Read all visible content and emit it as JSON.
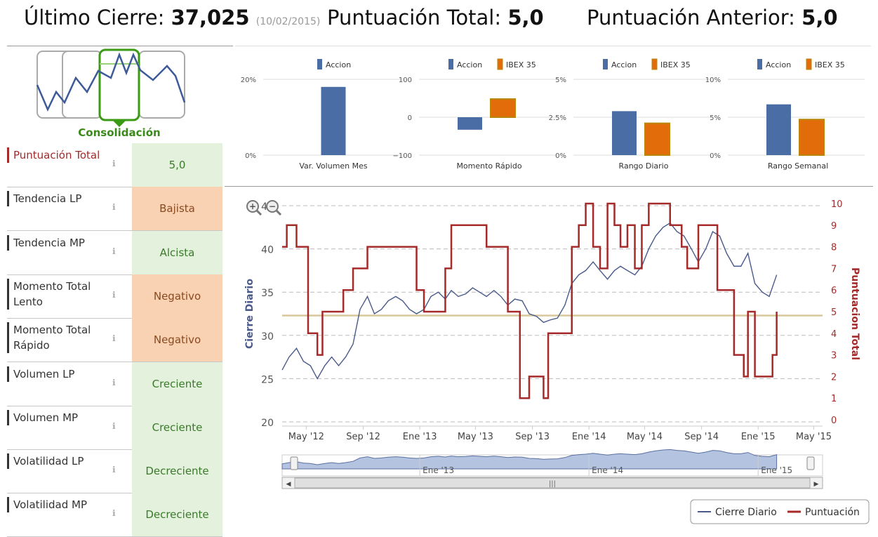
{
  "header": {
    "ultimo_label": "Último Cierre:",
    "ultimo_value": "37,025",
    "ultimo_date": "(10/02/2015)",
    "total_label": "Puntuación Total:",
    "total_value": "5,0",
    "anterior_label": "Puntuación Anterior:",
    "anterior_value": "5,0"
  },
  "pattern": {
    "label": "Consolidación"
  },
  "colors": {
    "accion": "#4a6da6",
    "ibex": "#e36c0a",
    "ibex_border": "#b8860b",
    "green_bg": "#e3f1dd",
    "orange_bg": "#f8d2b3",
    "line": "#4a5a8a",
    "score": "#a52a2a"
  },
  "scores": [
    {
      "label": "Puntuación Total",
      "value": "5,0",
      "status": "green",
      "red": true
    },
    {
      "label": "Tendencia LP",
      "value": "Bajista",
      "status": "orange"
    },
    {
      "label": "Tendencia MP",
      "value": "Alcista",
      "status": "green"
    },
    {
      "label": "Momento Total Lento",
      "value": "Negativo",
      "status": "orange"
    },
    {
      "label": "Momento Total Rápido",
      "value": "Negativo",
      "status": "orange"
    },
    {
      "label": "Volumen LP",
      "value": "Creciente",
      "status": "green"
    },
    {
      "label": "Volumen MP",
      "value": "Creciente",
      "status": "green"
    },
    {
      "label": "Volatilidad LP",
      "value": "Decreciente",
      "status": "green"
    },
    {
      "label": "Volatilidad MP",
      "value": "Decreciente",
      "status": "green"
    }
  ],
  "chart_data": [
    {
      "type": "bar",
      "xlabel": "Var. Volumen Mes",
      "legend": [
        "Accion"
      ],
      "yticks": [
        "0%",
        "20%"
      ],
      "ylim": [
        0,
        20
      ],
      "series": [
        {
          "name": "Accion",
          "values": [
            18
          ]
        }
      ]
    },
    {
      "type": "bar",
      "xlabel": "Momento Rápido",
      "legend": [
        "Accion",
        "IBEX 35"
      ],
      "yticks": [
        "−100",
        "0",
        "100"
      ],
      "ylim": [
        -100,
        100
      ],
      "series": [
        {
          "name": "Accion",
          "values": [
            -33
          ]
        },
        {
          "name": "IBEX 35",
          "values": [
            48
          ]
        }
      ]
    },
    {
      "type": "bar",
      "xlabel": "Rango Diario",
      "legend": [
        "Accion",
        "IBEX 35"
      ],
      "yticks": [
        "0%",
        "2.5%",
        "5%"
      ],
      "ylim": [
        0,
        5
      ],
      "series": [
        {
          "name": "Accion",
          "values": [
            2.9
          ]
        },
        {
          "name": "IBEX 35",
          "values": [
            2.1
          ]
        }
      ]
    },
    {
      "type": "bar",
      "xlabel": "Rango Semanal",
      "legend": [
        "Accion",
        "IBEX 35"
      ],
      "yticks": [
        "0%",
        "5%",
        "10%"
      ],
      "ylim": [
        0,
        10
      ],
      "series": [
        {
          "name": "Accion",
          "values": [
            6.7
          ]
        },
        {
          "name": "IBEX 35",
          "values": [
            4.7
          ]
        }
      ]
    },
    {
      "type": "line",
      "ylabel": "Cierre Diario",
      "y2label": "Puntuacion Total",
      "yticks": [
        "20",
        "25",
        "30",
        "35",
        "40",
        "45"
      ],
      "ylim": [
        20,
        45
      ],
      "y2ticks": [
        "0",
        "1",
        "2",
        "3",
        "4",
        "5",
        "6",
        "7",
        "8",
        "9",
        "10"
      ],
      "y2lim": [
        0,
        10
      ],
      "xlim": [
        "2012-03-10",
        "2015-05-20"
      ],
      "xticks": [
        {
          "date": "2012-05-01",
          "label": "May '12"
        },
        {
          "date": "2012-09-01",
          "label": "Sep '12"
        },
        {
          "date": "2013-01-01",
          "label": "Ene '13"
        },
        {
          "date": "2013-05-01",
          "label": "May '13"
        },
        {
          "date": "2013-09-01",
          "label": "Sep '13"
        },
        {
          "date": "2014-01-01",
          "label": "Ene '14"
        },
        {
          "date": "2014-05-01",
          "label": "May '14"
        },
        {
          "date": "2014-09-01",
          "label": "Sep '14"
        },
        {
          "date": "2015-01-01",
          "label": "Ene '15"
        },
        {
          "date": "2015-05-01",
          "label": "May '15"
        }
      ],
      "reference_line": 32.3,
      "legend": [
        "Cierre Diario",
        "Puntuación"
      ],
      "navigator_labels": [
        {
          "date": "2013-01-01",
          "label": "Ene '13"
        },
        {
          "date": "2014-01-01",
          "label": "Ene '14"
        },
        {
          "date": "2015-01-01",
          "label": "Ene '15"
        }
      ],
      "series": [
        {
          "name": "Cierre Diario",
          "x": [
            "2012-03-10",
            "2012-03-25",
            "2012-04-10",
            "2012-04-25",
            "2012-05-10",
            "2012-05-25",
            "2012-06-10",
            "2012-06-25",
            "2012-07-10",
            "2012-07-25",
            "2012-08-10",
            "2012-08-25",
            "2012-09-10",
            "2012-09-25",
            "2012-10-10",
            "2012-10-25",
            "2012-11-10",
            "2012-11-25",
            "2012-12-10",
            "2012-12-25",
            "2013-01-10",
            "2013-01-25",
            "2013-02-10",
            "2013-02-25",
            "2013-03-10",
            "2013-03-25",
            "2013-04-10",
            "2013-04-25",
            "2013-05-10",
            "2013-05-25",
            "2013-06-10",
            "2013-06-25",
            "2013-07-10",
            "2013-07-25",
            "2013-08-10",
            "2013-08-25",
            "2013-09-10",
            "2013-09-25",
            "2013-10-10",
            "2013-10-25",
            "2013-11-10",
            "2013-11-25",
            "2013-12-10",
            "2013-12-25",
            "2014-01-10",
            "2014-01-25",
            "2014-02-10",
            "2014-02-25",
            "2014-03-10",
            "2014-03-25",
            "2014-04-10",
            "2014-04-25",
            "2014-05-10",
            "2014-05-25",
            "2014-06-10",
            "2014-06-25",
            "2014-07-10",
            "2014-07-25",
            "2014-08-10",
            "2014-08-25",
            "2014-09-10",
            "2014-09-25",
            "2014-10-10",
            "2014-10-25",
            "2014-11-10",
            "2014-11-25",
            "2014-12-10",
            "2014-12-25",
            "2015-01-10",
            "2015-01-25",
            "2015-02-10"
          ],
          "values": [
            26,
            27.5,
            28.5,
            27,
            26.5,
            25,
            26.5,
            27.5,
            26.5,
            27.5,
            29,
            33,
            34.5,
            32.5,
            33,
            34,
            34.5,
            34,
            33,
            32.5,
            33,
            34.5,
            35,
            34.2,
            35.2,
            34.5,
            34.8,
            35.5,
            35,
            34.5,
            35.2,
            34.5,
            33.5,
            34.2,
            34,
            32.5,
            32.2,
            31.5,
            31.8,
            32,
            33.5,
            36,
            37,
            37.5,
            38.5,
            37.5,
            36.5,
            37.5,
            38,
            37.5,
            37,
            38,
            40,
            41.5,
            42.5,
            43,
            42,
            41.5,
            40,
            38.5,
            40,
            42,
            41.5,
            39.5,
            38,
            38,
            39.5,
            36,
            35,
            34.5,
            37
          ]
        },
        {
          "name": "Puntuación",
          "x": [
            "2012-03-10",
            "2012-03-20",
            "2012-04-10",
            "2012-05-05",
            "2012-05-25",
            "2012-06-05",
            "2012-06-15",
            "2012-07-20",
            "2012-08-10",
            "2012-08-25",
            "2012-09-10",
            "2012-11-20",
            "2012-12-01",
            "2012-12-25",
            "2013-01-10",
            "2013-02-10",
            "2013-02-25",
            "2013-03-10",
            "2013-04-20",
            "2013-05-05",
            "2013-05-25",
            "2013-06-10",
            "2013-07-10",
            "2013-07-25",
            "2013-08-05",
            "2013-08-25",
            "2013-09-25",
            "2013-10-05",
            "2013-11-05",
            "2013-11-25",
            "2013-12-10",
            "2013-12-25",
            "2014-01-10",
            "2014-01-25",
            "2014-02-10",
            "2014-02-25",
            "2014-03-10",
            "2014-03-25",
            "2014-04-10",
            "2014-04-25",
            "2014-05-10",
            "2014-05-25",
            "2014-06-10",
            "2014-06-25",
            "2014-07-10",
            "2014-07-20",
            "2014-08-01",
            "2014-08-25",
            "2014-09-10",
            "2014-10-05",
            "2014-10-25",
            "2014-11-10",
            "2014-11-20",
            "2014-12-01",
            "2014-12-10",
            "2014-12-25",
            "2015-01-20",
            "2015-02-01",
            "2015-02-10"
          ],
          "values": [
            8,
            9,
            8,
            4,
            3,
            5,
            5,
            6,
            7,
            7,
            8,
            8,
            8,
            6,
            5,
            5,
            7,
            9,
            9,
            9,
            8,
            8,
            5,
            5,
            1,
            2,
            1,
            4,
            4,
            8,
            9,
            10,
            8,
            7,
            10,
            9,
            8,
            9,
            7,
            9,
            10,
            10,
            10,
            9,
            9,
            8,
            7,
            9,
            9,
            6,
            6,
            3,
            3,
            2,
            5,
            2,
            2,
            3,
            5
          ]
        }
      ]
    }
  ]
}
